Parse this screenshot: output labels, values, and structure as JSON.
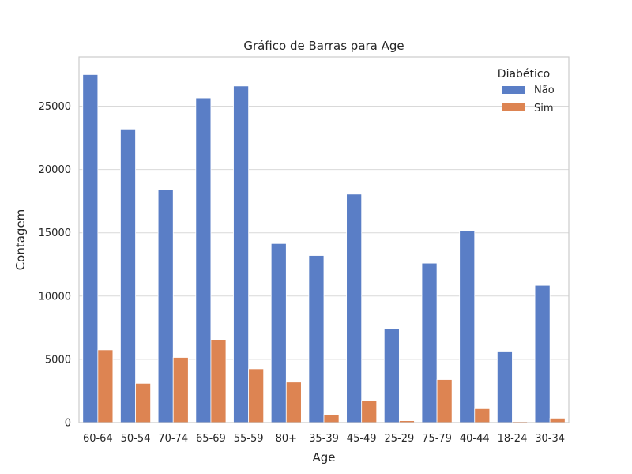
{
  "chart_data": {
    "type": "bar",
    "title": "Gráfico de Barras para Age",
    "xlabel": "Age",
    "ylabel": "Contagem",
    "categories": [
      "60-64",
      "50-54",
      "70-74",
      "65-69",
      "55-59",
      "80+",
      "35-39",
      "45-49",
      "25-29",
      "75-79",
      "40-44",
      "18-24",
      "30-34"
    ],
    "series": [
      {
        "name": "Não",
        "color": "#5a7ec6",
        "values": [
          27500,
          23200,
          18400,
          25650,
          26600,
          14150,
          13200,
          18050,
          7450,
          12600,
          15150,
          5650,
          10850
        ]
      },
      {
        "name": "Sim",
        "color": "#dd8452",
        "values": [
          5750,
          3100,
          5150,
          6550,
          4250,
          3200,
          650,
          1750,
          150,
          3400,
          1100,
          80,
          350
        ]
      }
    ],
    "ylim": [
      0,
      28900
    ],
    "yticks": [
      "0",
      "5000",
      "10000",
      "15000",
      "20000",
      "25000"
    ],
    "legend": {
      "title": "Diabético",
      "placement": "top-right"
    },
    "grid": true
  }
}
